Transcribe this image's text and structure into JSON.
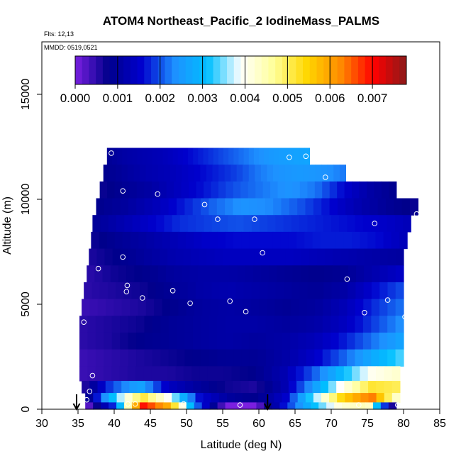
{
  "chart_data": {
    "type": "heatmap",
    "title": "ATOM4 Northeast_Pacific_2 IodineMass_PALMS",
    "flights_label": "Flts: 12,13",
    "dates_label": "MMDD: 0519,0521",
    "xlabel": "Latitude (deg N)",
    "ylabel": "Altitude (m)",
    "xlim": [
      30,
      85
    ],
    "ylim": [
      0,
      17500
    ],
    "xticks": [
      "30",
      "35",
      "40",
      "45",
      "50",
      "55",
      "60",
      "65",
      "70",
      "75",
      "80",
      "85"
    ],
    "yticks": [
      "0",
      "5000",
      "10000",
      "15000"
    ],
    "colorbar": {
      "ticks": [
        "0.000",
        "0.001",
        "0.002",
        "0.003",
        "0.004",
        "0.005",
        "0.006",
        "0.007"
      ],
      "range": [
        0,
        0.0078
      ],
      "colors": [
        "#7a1fe0",
        "#00008b",
        "#0000cd",
        "#1e90ff",
        "#00bfff",
        "#ffffff",
        "#ffff99",
        "#ffd700",
        "#ff8c00",
        "#ff0000",
        "#8b1a1a"
      ]
    },
    "grid_layers": [
      {
        "alt": 12050,
        "lat_min": 39.0,
        "lat_max": 67.0,
        "values": [
          0.0009,
          0.0011,
          0.0012,
          0.0013,
          0.0015,
          0.0017,
          0.0019,
          0.0021,
          0.0023,
          0.0025,
          0.0026,
          0.0027
        ]
      },
      {
        "alt": 11250,
        "lat_min": 38.5,
        "lat_max": 72.0,
        "values": [
          0.0008,
          0.001,
          0.0012,
          0.0013,
          0.0015,
          0.0017,
          0.0019,
          0.0022,
          0.0024,
          0.0025,
          0.0024,
          0.0022
        ]
      },
      {
        "alt": 10450,
        "lat_min": 38.0,
        "lat_max": 79.0,
        "values": [
          0.0007,
          0.0009,
          0.0011,
          0.0014,
          0.0017,
          0.002,
          0.0022,
          0.0024,
          0.0022,
          0.0016,
          0.0011,
          0.0008
        ]
      },
      {
        "alt": 9650,
        "lat_min": 37.5,
        "lat_max": 82.0,
        "values": [
          0.0008,
          0.001,
          0.0013,
          0.0017,
          0.0021,
          0.0024,
          0.0023,
          0.002,
          0.0016,
          0.0012,
          0.0009,
          0.0007
        ]
      },
      {
        "alt": 8850,
        "lat_min": 37.0,
        "lat_max": 81.0,
        "values": [
          0.0009,
          0.0012,
          0.0015,
          0.0018,
          0.0019,
          0.002,
          0.0019,
          0.0018,
          0.0017,
          0.0016,
          0.0015,
          0.0013
        ]
      },
      {
        "alt": 8050,
        "lat_min": 36.8,
        "lat_max": 80.5,
        "values": [
          0.0007,
          0.0009,
          0.0011,
          0.0013,
          0.0015,
          0.0016,
          0.0016,
          0.0016,
          0.0017,
          0.0017,
          0.0016,
          0.0013
        ]
      },
      {
        "alt": 7250,
        "lat_min": 36.5,
        "lat_max": 80.0,
        "values": [
          0.0006,
          0.0008,
          0.001,
          0.0012,
          0.0013,
          0.0014,
          0.0014,
          0.0014,
          0.0013,
          0.0012,
          0.0011,
          0.001
        ]
      },
      {
        "alt": 6450,
        "lat_min": 36.2,
        "lat_max": 80.0,
        "values": [
          0.0005,
          0.0007,
          0.0008,
          0.001,
          0.0011,
          0.0011,
          0.001,
          0.0009,
          0.0008,
          0.0009,
          0.0012,
          0.0015
        ]
      },
      {
        "alt": 5650,
        "lat_min": 35.8,
        "lat_max": 80.0,
        "values": [
          0.0005,
          0.0006,
          0.0007,
          0.0009,
          0.0011,
          0.0012,
          0.0011,
          0.001,
          0.0009,
          0.0011,
          0.0016,
          0.002
        ]
      },
      {
        "alt": 4850,
        "lat_min": 35.5,
        "lat_max": 80.0,
        "values": [
          0.0004,
          0.0005,
          0.0006,
          0.0008,
          0.001,
          0.0011,
          0.001,
          0.0009,
          0.001,
          0.0013,
          0.0018,
          0.0022
        ]
      },
      {
        "alt": 4050,
        "lat_min": 35.2,
        "lat_max": 80.0,
        "values": [
          0.0005,
          0.0006,
          0.0007,
          0.0009,
          0.001,
          0.0011,
          0.0011,
          0.001,
          0.0011,
          0.0014,
          0.0019,
          0.0024
        ]
      },
      {
        "alt": 3250,
        "lat_min": 35.2,
        "lat_max": 80.0,
        "values": [
          0.0005,
          0.0006,
          0.0008,
          0.0009,
          0.001,
          0.0011,
          0.001,
          0.0011,
          0.0013,
          0.0017,
          0.0022,
          0.0027
        ]
      },
      {
        "alt": 2450,
        "lat_min": 35.2,
        "lat_max": 80.0,
        "values": [
          0.0004,
          0.0005,
          0.0006,
          0.0007,
          0.0008,
          0.0009,
          0.0009,
          0.0011,
          0.0015,
          0.0021,
          0.0028,
          0.0034
        ]
      },
      {
        "alt": 1650,
        "lat_min": 35.2,
        "lat_max": 79.5,
        "values": [
          0.0004,
          0.0005,
          0.0006,
          0.0006,
          0.0007,
          0.0007,
          0.0008,
          0.0012,
          0.002,
          0.003,
          0.004,
          0.0043
        ]
      },
      {
        "alt": 1050,
        "lat_min": 35.5,
        "lat_max": 79.5,
        "values": [
          0.0004,
          0.0019,
          0.0027,
          0.0014,
          0.001,
          0.0007,
          0.0006,
          0.0012,
          0.0025,
          0.004,
          0.0052,
          0.005
        ]
      },
      {
        "alt": 500,
        "lat_min": 36.0,
        "lat_max": 79.5,
        "values": [
          0.0006,
          0.0032,
          0.0052,
          0.0038,
          0.0016,
          0.001,
          0.0008,
          0.0015,
          0.0035,
          0.0055,
          0.0064,
          0.004
        ]
      },
      {
        "alt": 150,
        "lat_min": 36.0,
        "lat_max": 79.0,
        "values": [
          0.0,
          0.0018,
          0.007,
          0.0058,
          0.002,
          0.0,
          0.0,
          0.0016,
          0.003,
          0.0042,
          0.0045,
          0.0
        ]
      }
    ],
    "sample_points": [
      [
        39.6,
        12200
      ],
      [
        64.2,
        12000
      ],
      [
        66.5,
        12050
      ],
      [
        69.2,
        11050
      ],
      [
        41.2,
        10400
      ],
      [
        46.0,
        10250
      ],
      [
        52.5,
        9750
      ],
      [
        54.3,
        9050
      ],
      [
        59.4,
        9050
      ],
      [
        76.0,
        8850
      ],
      [
        81.8,
        9300
      ],
      [
        41.2,
        7250
      ],
      [
        60.5,
        7450
      ],
      [
        37.8,
        6700
      ],
      [
        41.8,
        5900
      ],
      [
        41.7,
        5600
      ],
      [
        48.1,
        5650
      ],
      [
        43.9,
        5300
      ],
      [
        50.5,
        5050
      ],
      [
        56.0,
        5150
      ],
      [
        58.2,
        4650
      ],
      [
        72.2,
        6200
      ],
      [
        74.6,
        4600
      ],
      [
        77.8,
        5200
      ],
      [
        80.2,
        4400
      ],
      [
        35.8,
        4150
      ],
      [
        37.0,
        1600
      ],
      [
        36.6,
        850
      ],
      [
        36.2,
        450
      ],
      [
        41.9,
        250
      ],
      [
        42.9,
        250
      ],
      [
        49.6,
        250
      ],
      [
        57.4,
        200
      ],
      [
        73.8,
        200
      ],
      [
        79.2,
        200
      ]
    ],
    "arrows": [
      34.8,
      61.2
    ]
  }
}
